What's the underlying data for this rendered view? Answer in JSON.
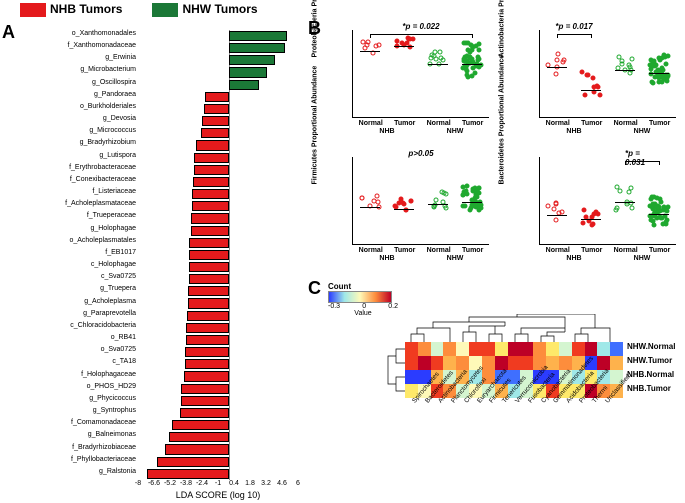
{
  "legend": {
    "nhb": {
      "label": "NHB Tumors",
      "color": "#e41a1c"
    },
    "nhw": {
      "label": "NHW Tumors",
      "color": "#1b7837"
    }
  },
  "panelA": {
    "label": "A",
    "xaxis_title": "LDA SCORE (log 10)",
    "xmin": -8.0,
    "xmax": 6.0,
    "xticks": [
      -8.0,
      -6.6,
      -5.2,
      -3.8,
      -2.4,
      -1.0,
      0.4,
      1.8,
      3.2,
      4.6,
      6.0
    ],
    "bars": [
      {
        "label": "o_Xanthomonadales",
        "value": 5.0,
        "color": "#1b7837"
      },
      {
        "label": "f_Xanthomonadaceae",
        "value": 4.9,
        "color": "#1b7837"
      },
      {
        "label": "g_Erwinia",
        "value": 4.0,
        "color": "#1b7837"
      },
      {
        "label": "g_Microbacterium",
        "value": 3.3,
        "color": "#1b7837"
      },
      {
        "label": "g_Oscillospira",
        "value": 2.6,
        "color": "#1b7837"
      },
      {
        "label": "g_Pandoraea",
        "value": -2.1,
        "color": "#e41a1c"
      },
      {
        "label": "o_Burkholderiales",
        "value": -2.2,
        "color": "#e41a1c"
      },
      {
        "label": "g_Devosia",
        "value": -2.4,
        "color": "#e41a1c"
      },
      {
        "label": "g_Micrococcus",
        "value": -2.5,
        "color": "#e41a1c"
      },
      {
        "label": "g_Bradyrhizobium",
        "value": -2.9,
        "color": "#e41a1c"
      },
      {
        "label": "g_Lutispora",
        "value": -3.1,
        "color": "#e41a1c"
      },
      {
        "label": "f_Erythrobacteraceae",
        "value": -3.1,
        "color": "#e41a1c"
      },
      {
        "label": "f_Conexibacteraceae",
        "value": -3.2,
        "color": "#e41a1c"
      },
      {
        "label": "f_Listeriaceae",
        "value": -3.3,
        "color": "#e41a1c"
      },
      {
        "label": "f_Acholeplasmataceae",
        "value": -3.3,
        "color": "#e41a1c"
      },
      {
        "label": "f_Trueperaceae",
        "value": -3.4,
        "color": "#e41a1c"
      },
      {
        "label": "g_Holophagae",
        "value": -3.4,
        "color": "#e41a1c"
      },
      {
        "label": "o_Acholeplasmatales",
        "value": -3.5,
        "color": "#e41a1c"
      },
      {
        "label": "f_EB1017",
        "value": -3.5,
        "color": "#e41a1c"
      },
      {
        "label": "c_Holophagae",
        "value": -3.5,
        "color": "#e41a1c"
      },
      {
        "label": "c_Sva0725",
        "value": -3.5,
        "color": "#e41a1c"
      },
      {
        "label": "g_Truepera",
        "value": -3.6,
        "color": "#e41a1c"
      },
      {
        "label": "g_Acholeplasma",
        "value": -3.6,
        "color": "#e41a1c"
      },
      {
        "label": "g_Paraprevotella",
        "value": -3.7,
        "color": "#e41a1c"
      },
      {
        "label": "c_Chloracidobacteria",
        "value": -3.8,
        "color": "#e41a1c"
      },
      {
        "label": "o_RB41",
        "value": -3.8,
        "color": "#e41a1c"
      },
      {
        "label": "o_Sva0725",
        "value": -3.9,
        "color": "#e41a1c"
      },
      {
        "label": "c_TA18",
        "value": -3.9,
        "color": "#e41a1c"
      },
      {
        "label": "f_Holophagaceae",
        "value": -4.0,
        "color": "#e41a1c"
      },
      {
        "label": "o_PHOS_HD29",
        "value": -4.2,
        "color": "#e41a1c"
      },
      {
        "label": "g_Phycicoccus",
        "value": -4.2,
        "color": "#e41a1c"
      },
      {
        "label": "g_Syntrophus",
        "value": -4.3,
        "color": "#e41a1c"
      },
      {
        "label": "f_Comamonadaceae",
        "value": -5.0,
        "color": "#e41a1c"
      },
      {
        "label": "g_Balneimonas",
        "value": -5.3,
        "color": "#e41a1c"
      },
      {
        "label": "f_Bradyrhizobiaceae",
        "value": -5.6,
        "color": "#e41a1c"
      },
      {
        "label": "f_Phyllobacteriaceae",
        "value": -6.3,
        "color": "#e41a1c"
      },
      {
        "label": "g_Ralstonia",
        "value": -7.2,
        "color": "#e41a1c"
      }
    ]
  },
  "panelB": {
    "label": "B",
    "subplots": [
      {
        "ylabel": "Proteobacteria\nProportional Abundance",
        "pval": "*p = 0.022",
        "ymin": 0.8,
        "ymax": 1.0,
        "bracket": [
          0,
          3
        ],
        "groups": [
          {
            "cat": "Normal",
            "lab": "NHB",
            "fill": "none",
            "stroke": "#e41a1c",
            "n": 7,
            "mean": 0.95,
            "spread": 0.015
          },
          {
            "cat": "Tumor",
            "lab": "NHB",
            "fill": "#e41a1c",
            "stroke": "#e41a1c",
            "n": 10,
            "mean": 0.96,
            "spread": 0.01
          },
          {
            "cat": "Normal",
            "lab": "NHW",
            "fill": "none",
            "stroke": "#1fa82f",
            "n": 10,
            "mean": 0.92,
            "spread": 0.03
          },
          {
            "cat": "Tumor",
            "lab": "NHW",
            "fill": "#1fa82f",
            "stroke": "#1fa82f",
            "n": 42,
            "mean": 0.92,
            "spread": 0.04
          }
        ]
      },
      {
        "ylabel": "Actinobacteria\nProportional Abundance",
        "pval": "*p = 0.017",
        "ymin": 0.001,
        "ymax": 1.0,
        "log": true,
        "bracket": [
          0,
          1
        ],
        "groups": [
          {
            "cat": "Normal",
            "lab": "NHB",
            "fill": "none",
            "stroke": "#e41a1c",
            "n": 7,
            "mean": 0.05,
            "spread": 0.4
          },
          {
            "cat": "Tumor",
            "lab": "NHB",
            "fill": "#e41a1c",
            "stroke": "#e41a1c",
            "n": 10,
            "mean": 0.008,
            "spread": 0.5
          },
          {
            "cat": "Normal",
            "lab": "NHW",
            "fill": "none",
            "stroke": "#1fa82f",
            "n": 10,
            "mean": 0.04,
            "spread": 0.3
          },
          {
            "cat": "Tumor",
            "lab": "NHW",
            "fill": "#1fa82f",
            "stroke": "#1fa82f",
            "n": 42,
            "mean": 0.03,
            "spread": 0.5
          }
        ]
      },
      {
        "ylabel": "Firmicutes\nProportional Abundance",
        "pval": "p>0.05",
        "ymin": 0.001,
        "ymax": 1.0,
        "log": true,
        "bracket": null,
        "groups": [
          {
            "cat": "Normal",
            "lab": "NHB",
            "fill": "none",
            "stroke": "#e41a1c",
            "n": 7,
            "mean": 0.018,
            "spread": 0.25
          },
          {
            "cat": "Tumor",
            "lab": "NHB",
            "fill": "#e41a1c",
            "stroke": "#e41a1c",
            "n": 10,
            "mean": 0.015,
            "spread": 0.3
          },
          {
            "cat": "Normal",
            "lab": "NHW",
            "fill": "none",
            "stroke": "#1fa82f",
            "n": 10,
            "mean": 0.022,
            "spread": 0.3
          },
          {
            "cat": "Tumor",
            "lab": "NHW",
            "fill": "#1fa82f",
            "stroke": "#1fa82f",
            "n": 42,
            "mean": 0.025,
            "spread": 0.45
          }
        ]
      },
      {
        "ylabel": "Bacteroidetes\nProportional Abundance",
        "pval": "*p = 0.031",
        "ymin": 0.001,
        "ymax": 1.0,
        "log": true,
        "bracket": [
          2,
          3
        ],
        "groups": [
          {
            "cat": "Normal",
            "lab": "NHB",
            "fill": "none",
            "stroke": "#e41a1c",
            "n": 7,
            "mean": 0.009,
            "spread": 0.3
          },
          {
            "cat": "Tumor",
            "lab": "NHB",
            "fill": "#e41a1c",
            "stroke": "#e41a1c",
            "n": 10,
            "mean": 0.007,
            "spread": 0.35
          },
          {
            "cat": "Normal",
            "lab": "NHW",
            "fill": "none",
            "stroke": "#1fa82f",
            "n": 10,
            "mean": 0.025,
            "spread": 0.4
          },
          {
            "cat": "Tumor",
            "lab": "NHW",
            "fill": "#1fa82f",
            "stroke": "#1fa82f",
            "n": 42,
            "mean": 0.01,
            "spread": 0.5
          }
        ]
      }
    ],
    "xcats": [
      "Normal",
      "Tumor",
      "Normal",
      "Tumor"
    ],
    "xlabs": [
      "NHB",
      "NHW"
    ]
  },
  "panelC": {
    "label": "C",
    "colorkey": {
      "title": "Count",
      "ytitle": "",
      "min": -0.3,
      "mid": 0,
      "max": 0.2,
      "ticks": [
        "-0.3",
        "0",
        "0.2"
      ]
    },
    "rows": [
      "NHW.Normal",
      "NHW.Tumor",
      "NHB.Normal",
      "NHB.Tumor"
    ],
    "cols": [
      "Spirochaetes",
      "Bacteroidetes",
      "Actinobacteria",
      "Planctomycetes",
      "Chloroflexi",
      "Euryarchaeota",
      "Firmicutes",
      "Tenericutes",
      "Verrucomicrobia",
      "Fusobacteria",
      "Cyanobacteria",
      "Gemmatimonadetes",
      "Acidobacteria",
      "Proteobacteria",
      "Thermi",
      "Unclassified",
      ""
    ],
    "palette": [
      "#2b3cff",
      "#3f6fff",
      "#58b6ff",
      "#9fe8e8",
      "#d4f5d0",
      "#fef9b8",
      "#fee96a",
      "#feb24c",
      "#fd8d3c",
      "#f03b20",
      "#bd0026"
    ],
    "values": [
      [
        9,
        8,
        4,
        8,
        5,
        9,
        9,
        6,
        10,
        10,
        8,
        6,
        4,
        9,
        10,
        3,
        1
      ],
      [
        9,
        10,
        9,
        7,
        8,
        5,
        8,
        10,
        9,
        9,
        8,
        7,
        8,
        7,
        0,
        10,
        7
      ],
      [
        0,
        0,
        7,
        4,
        7,
        3,
        8,
        1,
        1,
        4,
        0,
        0,
        4,
        3,
        6,
        3,
        4
      ],
      [
        6,
        5,
        9,
        8,
        4,
        5,
        4,
        7,
        3,
        4,
        6,
        9,
        6,
        6,
        10,
        8,
        7
      ]
    ]
  }
}
